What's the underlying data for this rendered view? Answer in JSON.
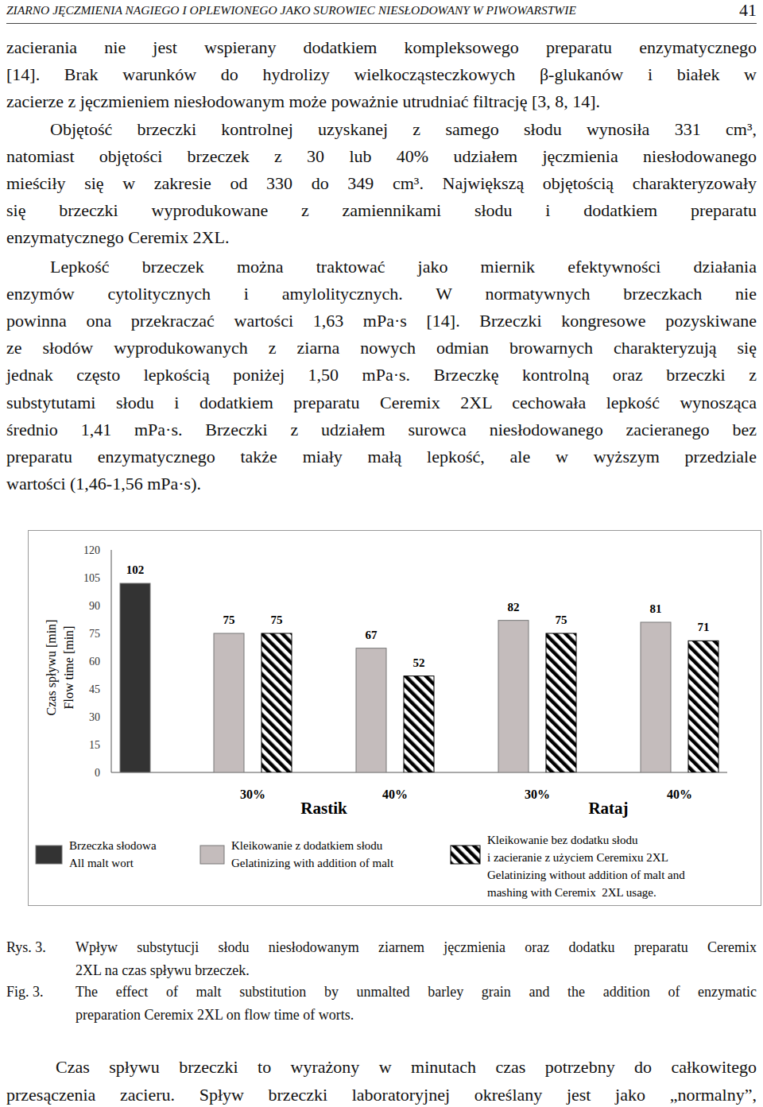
{
  "header": {
    "title": "ZIARNO JĘCZMIENIA NAGIEGO I OPLEWIONEGO JAKO SUROWIEC NIESŁODOWANY W PIWOWARSTWIE",
    "page": 41
  },
  "paragraphs": [
    [
      "zacierania nie jest wspierany dodatkiem kompleksowego preparatu enzymatycznego",
      "[14]. Brak warunków do hydrolizy wielkocząsteczkowych β-glukanów i białek w",
      "zacierze z jęczmieniem niesłodowanym może poważnie utrudniać filtrację [3, 8, 14]."
    ],
    [
      "Objętość brzeczki kontrolnej uzyskanej z samego słodu wynosiła 331 cm³,",
      "natomiast objętości brzeczek z 30 lub 40% udziałem jęczmienia niesłodowanego",
      "mieściły się w zakresie od 330 do 349 cm³. Największą objętością charakteryzowały",
      "się brzeczki wyprodukowane z zamiennikami słodu i dodatkiem preparatu",
      "enzymatycznego Ceremix 2XL."
    ],
    [
      "Lepkość brzeczek można traktować jako miernik efektywności działania",
      "enzymów cytolitycznych i amylolitycznych. W normatywnych brzeczkach nie",
      "powinna ona przekraczać wartości 1,63 mPa·s [14]. Brzeczki kongresowe pozyskiwane",
      "ze słodów wyprodukowanych z ziarna nowych odmian browarnych charakteryzują się",
      "jednak często lepkością poniżej 1,50 mPa·s. Brzeczkę kontrolną oraz brzeczki z",
      "substytutami słodu i dodatkiem preparatu Ceremix 2XL cechowała lepkość wynosząca",
      "średnio 1,41 mPa·s. Brzeczki z udziałem surowca niesłodowanego zacieranego bez",
      "preparatu enzymatycznego także miały małą lepkość, ale w wyższym przedziale",
      "wartości (1,46-1,56 mPa·s)."
    ]
  ],
  "chart_data": {
    "type": "bar",
    "y_label": [
      "Czas spływu [min]",
      "Flow time [min]"
    ],
    "categories": [
      null,
      "30%",
      "40%",
      "30%",
      "40%"
    ],
    "groups": [
      {
        "label": "Rastik",
        "from": 1,
        "to": 2
      },
      {
        "label": "Rataj",
        "from": 3,
        "to": 4
      }
    ],
    "series": [
      {
        "name": "Brzeczka słodowa\nAll malt wort",
        "color": "#333333",
        "values": [
          102,
          null,
          null,
          null,
          null
        ]
      },
      {
        "name": "Kleikowanie z dodatkiem słodu\nGelatinizing with addition of malt",
        "color": "#c4bcbc",
        "values": [
          null,
          75,
          67,
          82,
          81
        ]
      },
      {
        "name": "Kleikowanie bez dodatku słodu\ni zacieranie z użyciem Ceremixu 2XL\nGelatinizing without addition of malt and\nmashing with Ceremix  2XL usage.",
        "color": "#000000",
        "marker": "hatch",
        "values": [
          null,
          75,
          52,
          75,
          71
        ]
      }
    ],
    "ylim": [
      0,
      120
    ],
    "yticks": [
      0,
      15,
      30,
      45,
      60,
      75,
      90,
      105,
      120
    ],
    "grid": false,
    "data_labels": true,
    "legend": "bottom"
  },
  "caption": [
    {
      "label": "Rys. 3.",
      "lines": [
        "Wpływ substytucji słodu niesłodowanym ziarnem jęczmienia oraz dodatku preparatu Ceremix",
        "2XL na czas spływu brzeczek."
      ]
    },
    {
      "label": "Fig. 3.",
      "lines": [
        "The effect of malt substitution by unmalted barley grain and the addition of enzymatic",
        "preparation Ceremix 2XL on flow time of worts."
      ]
    }
  ],
  "text_after": [
    "Czas spływu brzeczki to wyrażony w minutach czas potrzebny do całkowitego",
    "przesączenia zacieru. Spływ brzeczki laboratoryjnej określany jest jako „normalny”,"
  ]
}
